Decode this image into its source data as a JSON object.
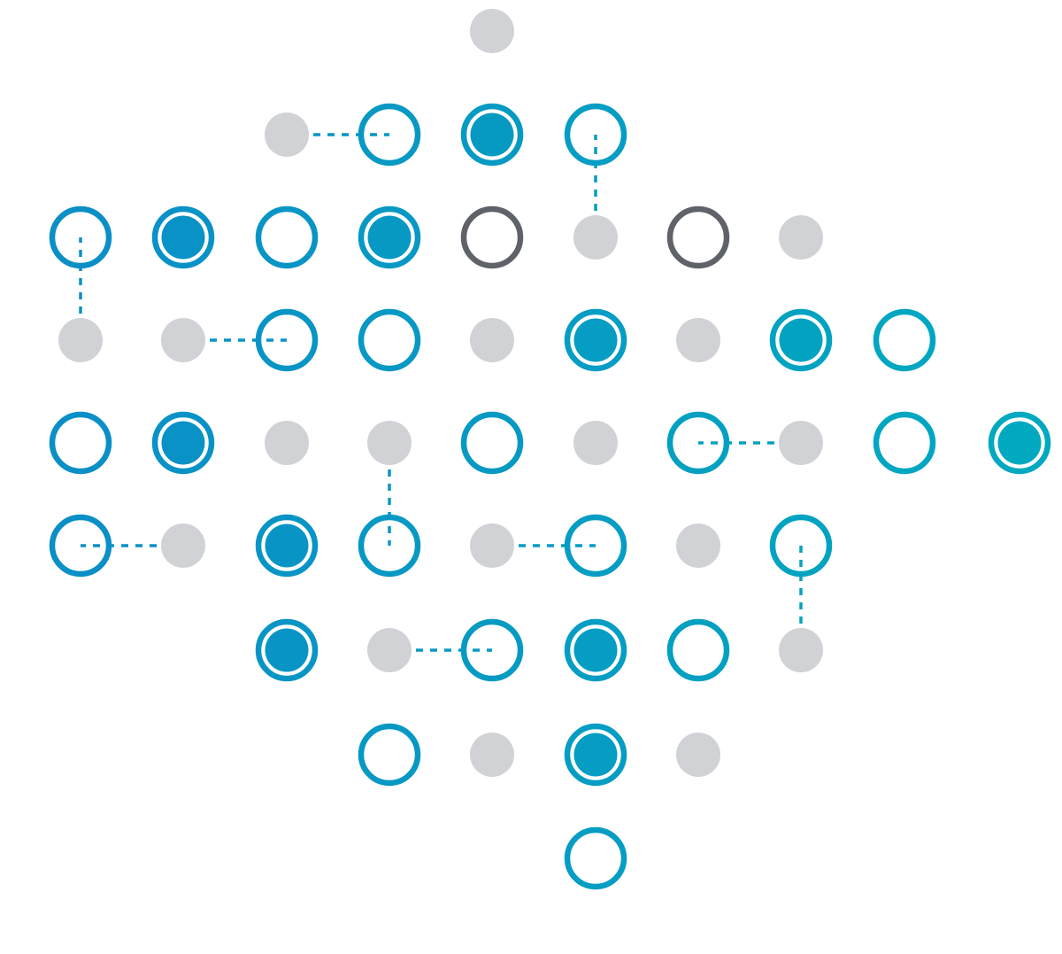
{
  "colors": {
    "node_gray": "#d0d2d6",
    "ring_dark": "#5f6369",
    "blue": "#0a8fc6",
    "teal": "#00a9c0",
    "background": "#ffffff"
  },
  "node_types": [
    "gray-dot",
    "ring",
    "filled-ring",
    "dark-ring"
  ],
  "nodes": [
    {
      "row": 0,
      "col": 4,
      "type": "gray-dot"
    },
    {
      "row": 1,
      "col": 2,
      "type": "gray-dot"
    },
    {
      "row": 1,
      "col": 3,
      "type": "ring"
    },
    {
      "row": 1,
      "col": 4,
      "type": "filled-ring"
    },
    {
      "row": 1,
      "col": 5,
      "type": "ring"
    },
    {
      "row": 2,
      "col": 0,
      "type": "ring"
    },
    {
      "row": 2,
      "col": 1,
      "type": "filled-ring"
    },
    {
      "row": 2,
      "col": 2,
      "type": "ring"
    },
    {
      "row": 2,
      "col": 3,
      "type": "filled-ring"
    },
    {
      "row": 2,
      "col": 4,
      "type": "dark-ring"
    },
    {
      "row": 2,
      "col": 5,
      "type": "gray-dot"
    },
    {
      "row": 2,
      "col": 6,
      "type": "dark-ring"
    },
    {
      "row": 2,
      "col": 7,
      "type": "gray-dot"
    },
    {
      "row": 3,
      "col": 0,
      "type": "gray-dot"
    },
    {
      "row": 3,
      "col": 1,
      "type": "gray-dot"
    },
    {
      "row": 3,
      "col": 2,
      "type": "ring"
    },
    {
      "row": 3,
      "col": 3,
      "type": "ring"
    },
    {
      "row": 3,
      "col": 4,
      "type": "gray-dot"
    },
    {
      "row": 3,
      "col": 5,
      "type": "filled-ring"
    },
    {
      "row": 3,
      "col": 6,
      "type": "gray-dot"
    },
    {
      "row": 3,
      "col": 7,
      "type": "filled-ring"
    },
    {
      "row": 3,
      "col": 8,
      "type": "ring"
    },
    {
      "row": 4,
      "col": 0,
      "type": "ring"
    },
    {
      "row": 4,
      "col": 1,
      "type": "filled-ring"
    },
    {
      "row": 4,
      "col": 2,
      "type": "gray-dot"
    },
    {
      "row": 4,
      "col": 3,
      "type": "gray-dot"
    },
    {
      "row": 4,
      "col": 4,
      "type": "ring"
    },
    {
      "row": 4,
      "col": 5,
      "type": "gray-dot"
    },
    {
      "row": 4,
      "col": 6,
      "type": "ring"
    },
    {
      "row": 4,
      "col": 7,
      "type": "gray-dot"
    },
    {
      "row": 4,
      "col": 8,
      "type": "ring"
    },
    {
      "row": 4,
      "col": 9,
      "type": "filled-ring"
    },
    {
      "row": 5,
      "col": 0,
      "type": "ring"
    },
    {
      "row": 5,
      "col": 1,
      "type": "gray-dot"
    },
    {
      "row": 5,
      "col": 2,
      "type": "filled-ring"
    },
    {
      "row": 5,
      "col": 3,
      "type": "ring"
    },
    {
      "row": 5,
      "col": 4,
      "type": "gray-dot"
    },
    {
      "row": 5,
      "col": 5,
      "type": "ring"
    },
    {
      "row": 5,
      "col": 6,
      "type": "gray-dot"
    },
    {
      "row": 5,
      "col": 7,
      "type": "ring"
    },
    {
      "row": 6,
      "col": 2,
      "type": "filled-ring"
    },
    {
      "row": 6,
      "col": 3,
      "type": "gray-dot"
    },
    {
      "row": 6,
      "col": 4,
      "type": "ring"
    },
    {
      "row": 6,
      "col": 5,
      "type": "filled-ring"
    },
    {
      "row": 6,
      "col": 6,
      "type": "ring"
    },
    {
      "row": 6,
      "col": 7,
      "type": "gray-dot"
    },
    {
      "row": 7,
      "col": 3,
      "type": "ring"
    },
    {
      "row": 7,
      "col": 4,
      "type": "gray-dot"
    },
    {
      "row": 7,
      "col": 5,
      "type": "filled-ring"
    },
    {
      "row": 7,
      "col": 6,
      "type": "gray-dot"
    },
    {
      "row": 8,
      "col": 5,
      "type": "ring"
    }
  ],
  "links": [
    {
      "from": [
        1,
        2
      ],
      "to": [
        1,
        3
      ]
    },
    {
      "from": [
        2,
        5
      ],
      "to": [
        1,
        5
      ]
    },
    {
      "from": [
        3,
        0
      ],
      "to": [
        2,
        0
      ]
    },
    {
      "from": [
        3,
        1
      ],
      "to": [
        3,
        2
      ]
    },
    {
      "from": [
        4,
        7
      ],
      "to": [
        4,
        6
      ]
    },
    {
      "from": [
        4,
        3
      ],
      "to": [
        5,
        3
      ]
    },
    {
      "from": [
        5,
        1
      ],
      "to": [
        5,
        0
      ]
    },
    {
      "from": [
        5,
        4
      ],
      "to": [
        5,
        5
      ]
    },
    {
      "from": [
        6,
        7
      ],
      "to": [
        5,
        7
      ]
    },
    {
      "from": [
        6,
        3
      ],
      "to": [
        6,
        4
      ]
    }
  ]
}
